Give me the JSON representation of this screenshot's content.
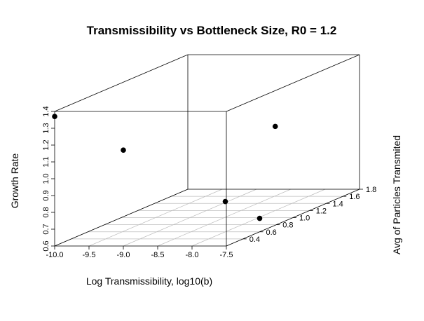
{
  "chart_data": {
    "type": "scatter3d",
    "title": "Transmissibility vs Bottleneck Size, R0 = 1.2",
    "xlabel": "Log Transmissibility, log10(b)",
    "ylabel": "Avg of Particles Transmited",
    "zlabel": "Growth Rate",
    "xlim": [
      -10.0,
      -7.5
    ],
    "ylim": [
      0.2,
      1.8
    ],
    "zlim": [
      0.6,
      1.4
    ],
    "x_ticks": [
      "-10.0",
      "-9.5",
      "-9.0",
      "-8.5",
      "-8.0",
      "-7.5"
    ],
    "y_ticks": [
      "0.4",
      "0.6",
      "0.8",
      "1.0",
      "1.2",
      "1.4",
      "1.6",
      "1.8"
    ],
    "z_ticks": [
      "0.6",
      "0.7",
      "0.8",
      "0.9",
      "1.0",
      "1.1",
      "1.2",
      "1.3",
      "1.4"
    ],
    "grid": true,
    "point_color": "#000000",
    "points": [
      {
        "x": -10.0,
        "y": 0.2,
        "z": 1.37
      },
      {
        "x": -9.0,
        "y": 0.2,
        "z": 1.17
      },
      {
        "x": -8.0,
        "y": 0.6,
        "z": 0.78
      },
      {
        "x": -8.0,
        "y": 1.2,
        "z": 1.1
      },
      {
        "x": -7.5,
        "y": 0.6,
        "z": 0.68
      }
    ]
  }
}
